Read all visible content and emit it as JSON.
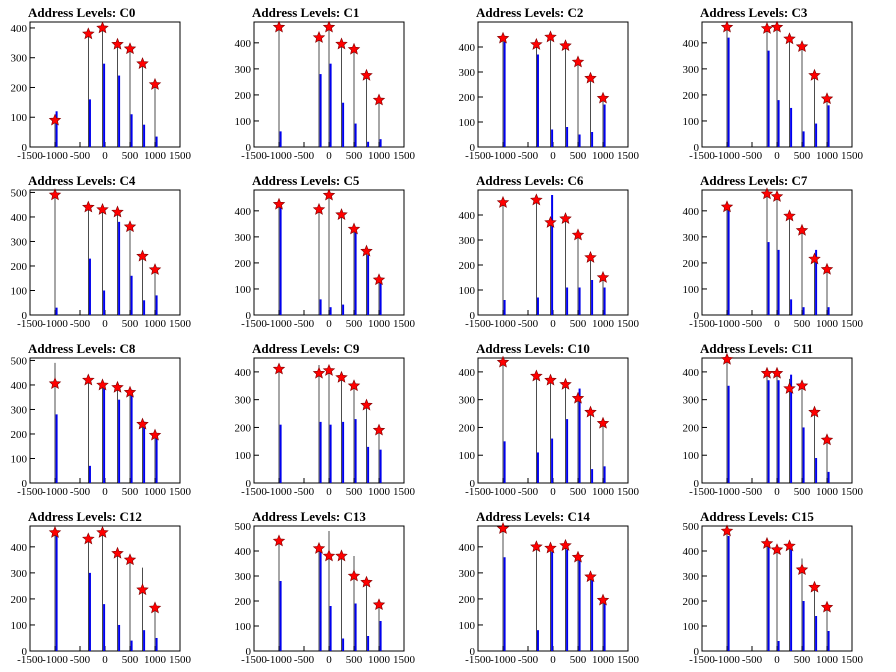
{
  "colors": {
    "bar": "#0000ee",
    "marker_fill": "#ff0000",
    "marker_stroke": "#800000",
    "axis": "#000000"
  },
  "xlim": [
    -1500,
    1500
  ],
  "x_ticks": [
    "-1500",
    "-1000",
    "-500",
    "0",
    "500",
    "1000",
    "1500"
  ],
  "x_tick_values": [
    -1500,
    -1000,
    -500,
    0,
    500,
    1000,
    1500
  ],
  "chart_data": [
    {
      "type": "bar",
      "title": "Address Levels: C0",
      "ylim": [
        0,
        420
      ],
      "y_ticks": [
        0,
        100,
        200,
        300,
        400
      ],
      "x": [
        -1000,
        -333,
        -50,
        250,
        500,
        750,
        1000
      ],
      "values": [
        120,
        160,
        280,
        240,
        110,
        75,
        35
      ],
      "line_heights": [
        90,
        380,
        400,
        350,
        330,
        280,
        210
      ],
      "markers": [
        90,
        380,
        400,
        345,
        330,
        280,
        210
      ]
    },
    {
      "type": "bar",
      "title": "Address Levels: C1",
      "ylim": [
        0,
        480
      ],
      "y_ticks": [
        0,
        100,
        200,
        300,
        400
      ],
      "x": [
        -1000,
        -200,
        0,
        250,
        500,
        750,
        1000
      ],
      "values": [
        60,
        280,
        320,
        170,
        90,
        20,
        30
      ],
      "line_heights": [
        460,
        420,
        460,
        400,
        375,
        275,
        180
      ],
      "markers": [
        460,
        420,
        460,
        395,
        375,
        275,
        180
      ]
    },
    {
      "type": "bar",
      "title": "Address Levels: C2",
      "ylim": [
        0,
        500
      ],
      "y_ticks": [
        0,
        100,
        200,
        300,
        400
      ],
      "x": [
        -1000,
        -333,
        -50,
        250,
        500,
        750,
        1000
      ],
      "values": [
        420,
        370,
        70,
        80,
        50,
        60,
        170
      ],
      "line_heights": [
        435,
        410,
        440,
        405,
        340,
        275,
        195
      ],
      "markers": [
        435,
        410,
        440,
        405,
        340,
        275,
        195
      ]
    },
    {
      "type": "bar",
      "title": "Address Levels: C3",
      "ylim": [
        0,
        480
      ],
      "y_ticks": [
        0,
        100,
        200,
        300,
        400
      ],
      "x": [
        -1000,
        -200,
        0,
        250,
        500,
        750,
        1000
      ],
      "values": [
        420,
        370,
        180,
        150,
        60,
        90,
        160
      ],
      "line_heights": [
        460,
        455,
        460,
        415,
        385,
        275,
        185
      ],
      "markers": [
        460,
        455,
        460,
        415,
        385,
        275,
        185
      ]
    },
    {
      "type": "bar",
      "title": "Address Levels: C4",
      "ylim": [
        0,
        510
      ],
      "y_ticks": [
        0,
        100,
        200,
        300,
        400,
        500
      ],
      "x": [
        -1000,
        -333,
        -50,
        250,
        500,
        750,
        1000
      ],
      "values": [
        30,
        230,
        100,
        380,
        160,
        60,
        80
      ],
      "line_heights": [
        490,
        440,
        430,
        420,
        360,
        240,
        185
      ],
      "markers": [
        490,
        440,
        430,
        420,
        360,
        240,
        185
      ]
    },
    {
      "type": "bar",
      "title": "Address Levels: C5",
      "ylim": [
        0,
        480
      ],
      "y_ticks": [
        0,
        100,
        200,
        300,
        400
      ],
      "x": [
        -1000,
        -200,
        0,
        250,
        500,
        750,
        1000
      ],
      "values": [
        420,
        60,
        30,
        40,
        320,
        230,
        130
      ],
      "line_heights": [
        425,
        405,
        460,
        385,
        330,
        245,
        135
      ],
      "markers": [
        425,
        405,
        460,
        385,
        330,
        245,
        135
      ]
    },
    {
      "type": "bar",
      "title": "Address Levels: C6",
      "ylim": [
        0,
        500
      ],
      "y_ticks": [
        0,
        100,
        200,
        300,
        400
      ],
      "x": [
        -1000,
        -333,
        -50,
        250,
        500,
        750,
        1000
      ],
      "values": [
        60,
        70,
        480,
        110,
        110,
        140,
        110
      ],
      "line_heights": [
        450,
        460,
        370,
        385,
        320,
        230,
        150
      ],
      "markers": [
        450,
        460,
        370,
        385,
        320,
        230,
        150
      ]
    },
    {
      "type": "bar",
      "title": "Address Levels: C7",
      "ylim": [
        0,
        480
      ],
      "y_ticks": [
        0,
        100,
        200,
        300,
        400
      ],
      "x": [
        -1000,
        -200,
        0,
        250,
        500,
        750,
        1000
      ],
      "values": [
        420,
        280,
        250,
        60,
        30,
        250,
        30
      ],
      "line_heights": [
        415,
        465,
        455,
        380,
        325,
        215,
        175
      ],
      "markers": [
        415,
        465,
        455,
        380,
        325,
        215,
        175
      ]
    },
    {
      "type": "bar",
      "title": "Address Levels: C8",
      "ylim": [
        0,
        510
      ],
      "y_ticks": [
        0,
        100,
        200,
        300,
        400,
        500
      ],
      "x": [
        -1000,
        -333,
        -50,
        250,
        500,
        750,
        1000
      ],
      "values": [
        280,
        70,
        400,
        340,
        380,
        250,
        190
      ],
      "line_heights": [
        490,
        420,
        400,
        390,
        370,
        240,
        195
      ],
      "markers": [
        405,
        420,
        400,
        390,
        370,
        240,
        195
      ]
    },
    {
      "type": "bar",
      "title": "Address Levels: C9",
      "ylim": [
        0,
        450
      ],
      "y_ticks": [
        0,
        100,
        200,
        300,
        400
      ],
      "x": [
        -1000,
        -200,
        0,
        250,
        500,
        750,
        1000
      ],
      "values": [
        210,
        220,
        210,
        220,
        230,
        130,
        120
      ],
      "line_heights": [
        410,
        425,
        405,
        380,
        350,
        280,
        190
      ],
      "markers": [
        410,
        395,
        405,
        380,
        350,
        280,
        190
      ]
    },
    {
      "type": "bar",
      "title": "Address Levels: C10",
      "ylim": [
        0,
        450
      ],
      "y_ticks": [
        0,
        100,
        200,
        300,
        400
      ],
      "x": [
        -1000,
        -333,
        -50,
        250,
        500,
        750,
        1000
      ],
      "values": [
        150,
        110,
        160,
        230,
        340,
        50,
        60
      ],
      "line_heights": [
        435,
        385,
        370,
        355,
        305,
        255,
        215
      ],
      "markers": [
        435,
        385,
        370,
        355,
        305,
        255,
        215
      ]
    },
    {
      "type": "bar",
      "title": "Address Levels: C11",
      "ylim": [
        0,
        450
      ],
      "y_ticks": [
        0,
        100,
        200,
        300,
        400
      ],
      "x": [
        -1000,
        -200,
        0,
        250,
        500,
        750,
        1000
      ],
      "values": [
        350,
        370,
        370,
        390,
        200,
        90,
        40
      ],
      "line_heights": [
        445,
        395,
        395,
        375,
        360,
        260,
        160
      ],
      "markers": [
        445,
        395,
        395,
        340,
        350,
        255,
        155
      ]
    },
    {
      "type": "bar",
      "title": "Address Levels: C12",
      "ylim": [
        0,
        480
      ],
      "y_ticks": [
        0,
        100,
        200,
        300,
        400
      ],
      "x": [
        -1000,
        -333,
        -50,
        250,
        500,
        750,
        1000
      ],
      "values": [
        460,
        300,
        180,
        100,
        40,
        80,
        50
      ],
      "line_heights": [
        455,
        430,
        455,
        375,
        350,
        320,
        165
      ],
      "markers": [
        455,
        430,
        455,
        375,
        350,
        235,
        165
      ]
    },
    {
      "type": "bar",
      "title": "Address Levels: C13",
      "ylim": [
        0,
        500
      ],
      "y_ticks": [
        0,
        100,
        200,
        300,
        400,
        500
      ],
      "x": [
        -1000,
        -200,
        0,
        250,
        500,
        750,
        1000
      ],
      "values": [
        280,
        410,
        180,
        50,
        190,
        60,
        120
      ],
      "line_heights": [
        440,
        410,
        480,
        380,
        380,
        275,
        185
      ],
      "markers": [
        440,
        410,
        380,
        380,
        300,
        275,
        185
      ]
    },
    {
      "type": "bar",
      "title": "Address Levels: C14",
      "ylim": [
        0,
        480
      ],
      "y_ticks": [
        0,
        100,
        200,
        300,
        400
      ],
      "x": [
        -1000,
        -333,
        -50,
        250,
        500,
        750,
        1000
      ],
      "values": [
        360,
        80,
        380,
        390,
        350,
        290,
        200
      ],
      "line_heights": [
        470,
        400,
        395,
        405,
        360,
        285,
        195
      ],
      "markers": [
        470,
        400,
        395,
        405,
        360,
        285,
        195
      ]
    },
    {
      "type": "bar",
      "title": "Address Levels: C15",
      "ylim": [
        0,
        500
      ],
      "y_ticks": [
        0,
        100,
        200,
        300,
        400,
        500
      ],
      "x": [
        -1000,
        -200,
        0,
        250,
        500,
        750,
        1000
      ],
      "values": [
        460,
        430,
        40,
        410,
        200,
        140,
        80
      ],
      "line_heights": [
        480,
        430,
        410,
        420,
        370,
        275,
        175
      ],
      "markers": [
        480,
        430,
        405,
        420,
        325,
        255,
        175
      ]
    }
  ]
}
